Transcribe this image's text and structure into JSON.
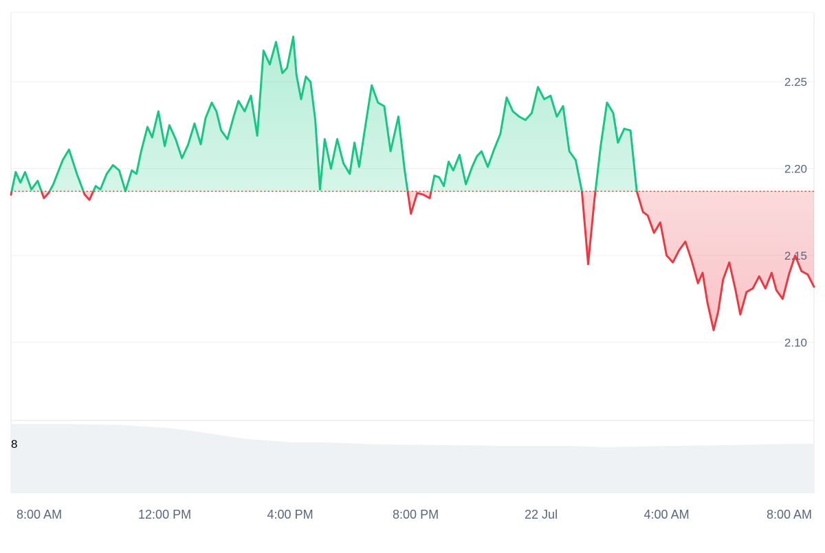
{
  "chart_data": {
    "type": "area",
    "title": "",
    "xlabel": "",
    "ylabel": "",
    "ylim": [
      2.055,
      2.29
    ],
    "baseline": 2.187,
    "y_ticks": [
      2.1,
      2.15,
      2.2,
      2.25
    ],
    "y_tick_labels": [
      "2.10",
      "2.15",
      "2.20",
      "2.25"
    ],
    "x_range_hours": [
      7.1,
      32.7
    ],
    "x_ticks": [
      {
        "hour": 8,
        "label": "8:00 AM"
      },
      {
        "hour": 12,
        "label": "12:00 PM"
      },
      {
        "hour": 16,
        "label": "4:00 PM"
      },
      {
        "hour": 20,
        "label": "8:00 PM"
      },
      {
        "hour": 24,
        "label": "22 Jul"
      },
      {
        "hour": 28,
        "label": "4:00 AM"
      },
      {
        "hour": 32,
        "label": "8:00 AM"
      }
    ],
    "grid": true,
    "colors": {
      "up_line": "#16c784",
      "up_fill": "#16c784",
      "down_line": "#ea3943",
      "down_fill": "#ea3943",
      "baseline": "#ea3943",
      "grid": "#eef0f3",
      "axis_text": "#58667e",
      "volume": "#eff2f5"
    },
    "price": {
      "hours": [
        7.1,
        7.25,
        7.4,
        7.55,
        7.75,
        7.95,
        8.15,
        8.3,
        8.45,
        8.6,
        8.75,
        8.95,
        9.2,
        9.45,
        9.6,
        9.8,
        9.95,
        10.15,
        10.35,
        10.55,
        10.75,
        10.95,
        11.1,
        11.25,
        11.45,
        11.6,
        11.8,
        12.0,
        12.15,
        12.35,
        12.55,
        12.75,
        12.95,
        13.15,
        13.3,
        13.5,
        13.65,
        13.8,
        14.0,
        14.2,
        14.35,
        14.55,
        14.75,
        14.95,
        15.15,
        15.35,
        15.55,
        15.75,
        15.9,
        16.1,
        16.2,
        16.35,
        16.5,
        16.65,
        16.8,
        16.95,
        17.1,
        17.3,
        17.5,
        17.7,
        17.9,
        18.05,
        18.2,
        18.4,
        18.6,
        18.8,
        19.0,
        19.2,
        19.45,
        19.65,
        19.85,
        20.05,
        20.25,
        20.45,
        20.6,
        20.75,
        20.9,
        21.05,
        21.2,
        21.4,
        21.6,
        21.8,
        21.95,
        22.1,
        22.3,
        22.5,
        22.7,
        22.9,
        23.1,
        23.3,
        23.5,
        23.7,
        23.9,
        24.1,
        24.3,
        24.5,
        24.7,
        24.9,
        25.1,
        25.3,
        25.5,
        25.7,
        25.9,
        26.1,
        26.3,
        26.45,
        26.65,
        26.85,
        27.05,
        27.25,
        27.4,
        27.6,
        27.8,
        28.0,
        28.2,
        28.4,
        28.6,
        28.8,
        29.0,
        29.15,
        29.3,
        29.5,
        29.65,
        29.8,
        30.0,
        30.2,
        30.35,
        30.55,
        30.75,
        30.95,
        31.15,
        31.35,
        31.5,
        31.7,
        31.9,
        32.1,
        32.3,
        32.5,
        32.7
      ],
      "values": [
        2.185,
        2.198,
        2.192,
        2.198,
        2.188,
        2.193,
        2.183,
        2.186,
        2.191,
        2.198,
        2.205,
        2.211,
        2.197,
        2.185,
        2.182,
        2.19,
        2.188,
        2.197,
        2.202,
        2.199,
        2.187,
        2.199,
        2.197,
        2.21,
        2.224,
        2.218,
        2.233,
        2.213,
        2.225,
        2.217,
        2.206,
        2.214,
        2.226,
        2.214,
        2.229,
        2.238,
        2.233,
        2.222,
        2.217,
        2.23,
        2.239,
        2.233,
        2.242,
        2.219,
        2.268,
        2.26,
        2.273,
        2.255,
        2.258,
        2.276,
        2.254,
        2.24,
        2.253,
        2.25,
        2.228,
        2.188,
        2.217,
        2.2,
        2.217,
        2.203,
        2.197,
        2.215,
        2.201,
        2.225,
        2.248,
        2.238,
        2.236,
        2.21,
        2.23,
        2.199,
        2.174,
        2.186,
        2.185,
        2.183,
        2.196,
        2.195,
        2.19,
        2.204,
        2.199,
        2.208,
        2.191,
        2.201,
        2.207,
        2.21,
        2.201,
        2.211,
        2.22,
        2.241,
        2.233,
        2.23,
        2.228,
        2.232,
        2.247,
        2.24,
        2.242,
        2.23,
        2.236,
        2.21,
        2.205,
        2.187,
        2.145,
        2.182,
        2.213,
        2.238,
        2.232,
        2.215,
        2.223,
        2.222,
        2.187,
        2.175,
        2.173,
        2.163,
        2.169,
        2.15,
        2.146,
        2.153,
        2.158,
        2.147,
        2.134,
        2.14,
        2.123,
        2.107,
        2.118,
        2.136,
        2.146,
        2.13,
        2.116,
        2.129,
        2.131,
        2.138,
        2.131,
        2.14,
        2.13,
        2.125,
        2.139,
        2.15,
        2.141,
        2.139,
        2.132
      ]
    },
    "volume": {
      "hours": [
        7.1,
        9.0,
        10.5,
        12.0,
        13.0,
        14.5,
        16.0,
        17.0,
        19.0,
        21.0,
        23.0,
        25.0,
        26.0,
        28.0,
        30.0,
        32.0,
        32.7
      ],
      "values": [
        0.95,
        0.95,
        0.94,
        0.9,
        0.85,
        0.75,
        0.7,
        0.7,
        0.67,
        0.66,
        0.65,
        0.65,
        0.63,
        0.65,
        0.66,
        0.68,
        0.68
      ]
    },
    "volume_label": "8"
  }
}
